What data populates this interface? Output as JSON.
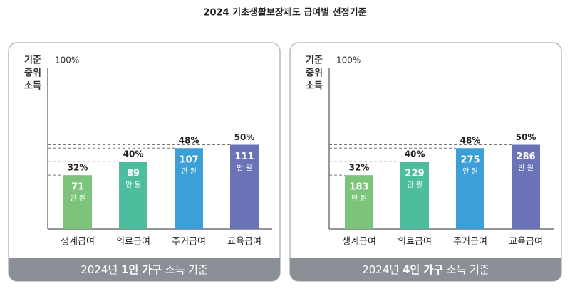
{
  "title": "2024 기초생활보장제도 급여별 선정기준",
  "chart_data": [
    {
      "type": "bar",
      "y_label": [
        "기준",
        "중위",
        "소득"
      ],
      "categories": [
        "생계급여",
        "의료급여",
        "주거급여",
        "교육급여"
      ],
      "values": [
        32,
        40,
        48,
        50
      ],
      "value_labels": [
        "32%",
        "40%",
        "48%",
        "50%"
      ],
      "amounts": [
        71,
        89,
        107,
        111
      ],
      "amount_unit": "만 원",
      "colors": [
        "#7cc47b",
        "#4dbd9e",
        "#3d9fd8",
        "#6b73b6"
      ],
      "ylim": [
        0,
        100
      ],
      "yticks": [
        {
          "value": 100,
          "label": "100%"
        }
      ],
      "caption": [
        "2024년 ",
        "1인 가구",
        " 소득 기준"
      ]
    },
    {
      "type": "bar",
      "y_label": [
        "기준",
        "중위",
        "소득"
      ],
      "categories": [
        "생계급여",
        "의료급여",
        "주거급여",
        "교육급여"
      ],
      "values": [
        32,
        40,
        48,
        50
      ],
      "value_labels": [
        "32%",
        "40%",
        "48%",
        "50%"
      ],
      "amounts": [
        183,
        229,
        275,
        286
      ],
      "amount_unit": "만 원",
      "colors": [
        "#7cc47b",
        "#4dbd9e",
        "#3d9fd8",
        "#6b73b6"
      ],
      "ylim": [
        0,
        100
      ],
      "yticks": [
        {
          "value": 100,
          "label": "100%"
        }
      ],
      "caption": [
        "2024년 ",
        "4인 가구",
        " 소득 기준"
      ]
    }
  ]
}
